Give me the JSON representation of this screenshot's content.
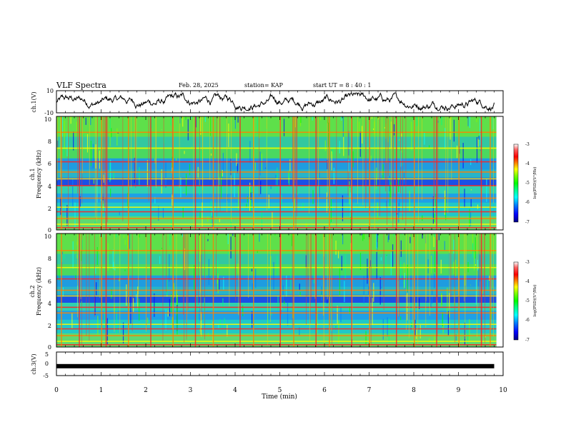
{
  "header": {
    "title": "VLF Spectra",
    "date": "Feb. 28, 2025",
    "station": "station= KAP",
    "start": "start  UT =   8 : 40 : 1"
  },
  "colorbar": {
    "label": "log(PSD)(V²/Hz)",
    "ticks": [
      "-3",
      "-4",
      "-5",
      "-6",
      "-7"
    ],
    "colors": [
      "#000080",
      "#0000ff",
      "#0080ff",
      "#00ffff",
      "#00ff80",
      "#00ff00",
      "#80ff00",
      "#ffff00",
      "#ff8000",
      "#ff0000",
      "#ff6060",
      "#ffffff"
    ]
  },
  "chart_data": [
    {
      "type": "line",
      "name": "ch1-waveform",
      "ylabel": "ch.1(V)",
      "ylim": [
        -10,
        10
      ],
      "ytick_labels": [
        "10",
        "-10"
      ],
      "xlim": [
        0,
        10
      ],
      "approx_range": [
        -8,
        8
      ],
      "note": "dense oscillating waveform, values roughly between -8 and 8 V"
    },
    {
      "type": "heatmap",
      "name": "ch1-spectrogram",
      "ylabel_channel": "ch.1",
      "ylabel": "Frequency (kHz)",
      "ylim": [
        0,
        10
      ],
      "ytick_labels": [
        "10",
        "8",
        "6",
        "4",
        "2",
        "0"
      ],
      "xlim": [
        0,
        10
      ],
      "clim": [
        -7,
        -3
      ],
      "horizontal_bands_khz": [
        0.2,
        0.5,
        1.0,
        1.6,
        2.0,
        2.8,
        3.9,
        4.5,
        5.1,
        6.0,
        7.2,
        8.6
      ],
      "vertical_bursts_min": [
        0.1,
        0.5,
        1.0,
        1.1,
        1.6,
        2.1,
        2.6,
        3.1,
        3.5,
        4.1,
        4.4,
        5.0,
        5.3,
        5.8,
        6.1,
        6.6,
        7.0,
        7.6,
        8.0,
        8.5,
        9.0,
        9.5,
        9.7
      ]
    },
    {
      "type": "heatmap",
      "name": "ch2-spectrogram",
      "ylabel_channel": "ch.2",
      "ylabel": "Frequency (kHz)",
      "ylim": [
        0,
        10
      ],
      "ytick_labels": [
        "10",
        "8",
        "6",
        "4",
        "2",
        "0"
      ],
      "xlim": [
        0,
        10
      ],
      "clim": [
        -7,
        -3
      ],
      "horizontal_bands_khz": [
        0.2,
        0.5,
        1.0,
        1.6,
        2.0,
        3.0,
        3.5,
        4.5,
        5.0,
        6.0,
        7.0,
        8.5
      ],
      "vertical_bursts_min": [
        0.1,
        0.5,
        1.0,
        1.1,
        1.6,
        2.1,
        2.6,
        3.1,
        3.5,
        4.1,
        4.4,
        5.0,
        5.3,
        5.8,
        6.1,
        6.6,
        7.0,
        7.6,
        8.0,
        8.5,
        9.0,
        9.5,
        9.7
      ]
    },
    {
      "type": "line",
      "name": "ch3-waveform",
      "ylabel": "ch.3(V)",
      "ylim": [
        -5,
        5
      ],
      "ytick_labels": [
        "5",
        "0",
        "-5"
      ],
      "xlim": [
        0,
        10
      ],
      "level_v": -1,
      "data_end_min": 9.8
    }
  ],
  "xaxis": {
    "label": "Time (min)",
    "tick_labels": [
      "0",
      "1",
      "2",
      "3",
      "4",
      "5",
      "6",
      "7",
      "8",
      "9",
      "10"
    ]
  }
}
